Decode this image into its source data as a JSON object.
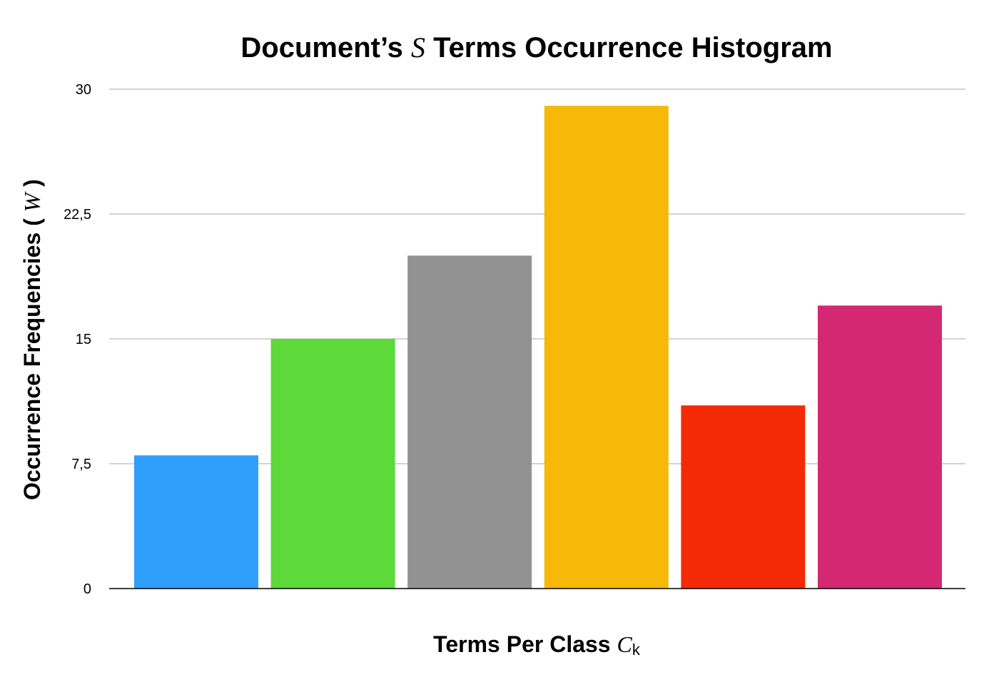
{
  "chart_data": {
    "type": "bar",
    "title": {
      "prefix": "Document’s ",
      "symbol": "S",
      "suffix": " Terms Occurrence Histogram"
    },
    "xlabel": {
      "prefix": "Terms Per Class ",
      "symbol": "C",
      "subscript": "k"
    },
    "ylabel": {
      "prefix": "Occurrence Frequencies ( ",
      "symbol": "W",
      "suffix": " )"
    },
    "ylim": [
      0,
      30
    ],
    "yticks": [
      {
        "value": 0,
        "label": "0"
      },
      {
        "value": 7.5,
        "label": "7,5"
      },
      {
        "value": 15,
        "label": "15"
      },
      {
        "value": 22.5,
        "label": "22,5"
      },
      {
        "value": 30,
        "label": "30"
      }
    ],
    "grid": true,
    "legend": "none",
    "values": [
      8,
      15,
      20,
      29,
      11,
      17
    ],
    "colors": [
      "#2f9ffc",
      "#5dd93a",
      "#929292",
      "#f6b907",
      "#f42a07",
      "#d42872"
    ]
  }
}
